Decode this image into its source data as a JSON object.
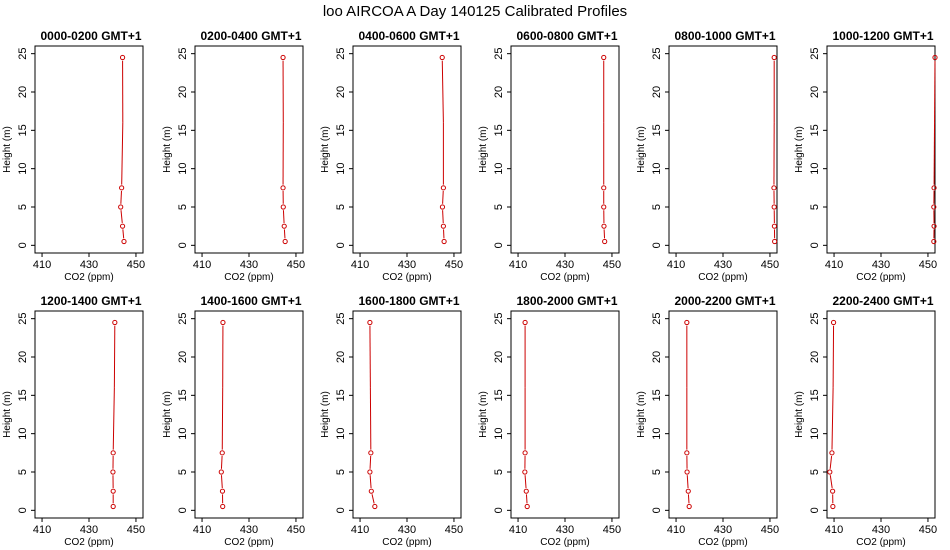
{
  "figure": {
    "title": "loo AIRCOA A  Day 140125  Calibrated Profiles"
  },
  "colors": {
    "series": "#cc0000",
    "axis": "#000000",
    "background": "#ffffff"
  },
  "chart_data": [
    {
      "type": "line",
      "title": "0000-0200 GMT+1",
      "xlabel": "CO2 (ppm)",
      "ylabel": "Height (m)",
      "xlim": [
        407,
        453
      ],
      "ylim": [
        -1,
        26
      ],
      "xticks": [
        410,
        430,
        450
      ],
      "yticks": [
        0,
        5,
        10,
        15,
        20,
        25
      ],
      "grid": false,
      "series": [
        {
          "x": [
            444.9,
            444.3,
            443.5,
            443.9,
            444.4,
            444.3
          ],
          "y": [
            0.5,
            2.5,
            5,
            7.5,
            16,
            24.5
          ],
          "markers": [
            true,
            true,
            true,
            true,
            false,
            true
          ]
        }
      ]
    },
    {
      "type": "line",
      "title": "0200-0400 GMT+1",
      "xlabel": "CO2 (ppm)",
      "ylabel": "Height (m)",
      "xlim": [
        407,
        453
      ],
      "ylim": [
        -1,
        26
      ],
      "xticks": [
        410,
        430,
        450
      ],
      "yticks": [
        0,
        5,
        10,
        15,
        20,
        25
      ],
      "grid": false,
      "series": [
        {
          "x": [
            445.4,
            445.0,
            444.6,
            444.5,
            444.6,
            444.5
          ],
          "y": [
            0.5,
            2.5,
            5,
            7.5,
            16,
            24.5
          ],
          "markers": [
            true,
            true,
            true,
            true,
            false,
            true
          ]
        }
      ]
    },
    {
      "type": "line",
      "title": "0400-0600 GMT+1",
      "xlabel": "CO2 (ppm)",
      "ylabel": "Height (m)",
      "xlim": [
        407,
        453
      ],
      "ylim": [
        -1,
        26
      ],
      "xticks": [
        410,
        430,
        450
      ],
      "yticks": [
        0,
        5,
        10,
        15,
        20,
        25
      ],
      "grid": false,
      "series": [
        {
          "x": [
            445.8,
            445.5,
            445.1,
            445.5,
            445.5,
            445.0
          ],
          "y": [
            0.5,
            2.5,
            5,
            7.5,
            16,
            24.5
          ],
          "markers": [
            true,
            true,
            true,
            true,
            false,
            true
          ]
        }
      ]
    },
    {
      "type": "line",
      "title": "0600-0800 GMT+1",
      "xlabel": "CO2 (ppm)",
      "ylabel": "Height (m)",
      "xlim": [
        407,
        453
      ],
      "ylim": [
        -1,
        26
      ],
      "xticks": [
        410,
        430,
        450
      ],
      "yticks": [
        0,
        5,
        10,
        15,
        20,
        25
      ],
      "grid": false,
      "series": [
        {
          "x": [
            446.9,
            446.6,
            446.5,
            446.5,
            446.5,
            446.5
          ],
          "y": [
            0.5,
            2.5,
            5,
            7.5,
            16,
            24.5
          ],
          "markers": [
            true,
            true,
            true,
            true,
            false,
            true
          ]
        }
      ]
    },
    {
      "type": "line",
      "title": "0800-1000 GMT+1",
      "xlabel": "CO2 (ppm)",
      "ylabel": "Height (m)",
      "xlim": [
        407,
        453
      ],
      "ylim": [
        -1,
        26
      ],
      "xticks": [
        410,
        430,
        450
      ],
      "yticks": [
        0,
        5,
        10,
        15,
        20,
        25
      ],
      "grid": false,
      "series": [
        {
          "x": [
            452.0,
            451.9,
            451.8,
            451.7,
            451.8,
            451.8
          ],
          "y": [
            0.5,
            2.5,
            5,
            7.5,
            16,
            24.5
          ],
          "markers": [
            true,
            true,
            true,
            true,
            false,
            true
          ]
        }
      ]
    },
    {
      "type": "line",
      "title": "1000-1200 GMT+1",
      "xlabel": "CO2 (ppm)",
      "ylabel": "Height (m)",
      "xlim": [
        407,
        453
      ],
      "ylim": [
        -1,
        26
      ],
      "xticks": [
        410,
        430,
        450
      ],
      "yticks": [
        0,
        5,
        10,
        15,
        20,
        25
      ],
      "grid": false,
      "series": [
        {
          "x": [
            452.5,
            452.6,
            452.5,
            452.6,
            452.8,
            453.0
          ],
          "y": [
            0.5,
            2.5,
            5,
            7.5,
            16,
            24.5
          ],
          "markers": [
            true,
            true,
            true,
            true,
            false,
            true
          ]
        }
      ]
    },
    {
      "type": "line",
      "title": "1200-1400 GMT+1",
      "xlabel": "CO2 (ppm)",
      "ylabel": "Height (m)",
      "xlim": [
        407,
        453
      ],
      "ylim": [
        -1,
        26
      ],
      "xticks": [
        410,
        430,
        450
      ],
      "yticks": [
        0,
        5,
        10,
        15,
        20,
        25
      ],
      "grid": false,
      "series": [
        {
          "x": [
            440.3,
            440.3,
            440.2,
            440.3,
            440.8,
            441.0
          ],
          "y": [
            0.5,
            2.5,
            5,
            7.5,
            16,
            24.5
          ],
          "markers": [
            true,
            true,
            true,
            true,
            false,
            true
          ]
        }
      ]
    },
    {
      "type": "line",
      "title": "1400-1600 GMT+1",
      "xlabel": "CO2 (ppm)",
      "ylabel": "Height (m)",
      "xlim": [
        407,
        453
      ],
      "ylim": [
        -1,
        26
      ],
      "xticks": [
        410,
        430,
        450
      ],
      "yticks": [
        0,
        5,
        10,
        15,
        20,
        25
      ],
      "grid": false,
      "series": [
        {
          "x": [
            418.8,
            418.7,
            418.2,
            418.6,
            418.8,
            418.9
          ],
          "y": [
            0.5,
            2.5,
            5,
            7.5,
            16,
            24.5
          ],
          "markers": [
            true,
            true,
            true,
            true,
            false,
            true
          ]
        }
      ]
    },
    {
      "type": "line",
      "title": "1600-1800 GMT+1",
      "xlabel": "CO2 (ppm)",
      "ylabel": "Height (m)",
      "xlim": [
        407,
        453
      ],
      "ylim": [
        -1,
        26
      ],
      "xticks": [
        410,
        430,
        450
      ],
      "yticks": [
        0,
        5,
        10,
        15,
        20,
        25
      ],
      "grid": false,
      "series": [
        {
          "x": [
            416.3,
            414.8,
            414.2,
            414.6,
            414.4,
            414.2
          ],
          "y": [
            0.5,
            2.5,
            5,
            7.5,
            16,
            24.5
          ],
          "markers": [
            true,
            true,
            true,
            true,
            false,
            true
          ]
        }
      ]
    },
    {
      "type": "line",
      "title": "1800-2000 GMT+1",
      "xlabel": "CO2 (ppm)",
      "ylabel": "Height (m)",
      "xlim": [
        407,
        453
      ],
      "ylim": [
        -1,
        26
      ],
      "xticks": [
        410,
        430,
        450
      ],
      "yticks": [
        0,
        5,
        10,
        15,
        20,
        25
      ],
      "grid": false,
      "series": [
        {
          "x": [
            413.9,
            413.5,
            412.9,
            413.0,
            413.0,
            413.0
          ],
          "y": [
            0.5,
            2.5,
            5,
            7.5,
            16,
            24.5
          ],
          "markers": [
            true,
            true,
            true,
            true,
            false,
            true
          ]
        }
      ]
    },
    {
      "type": "line",
      "title": "2000-2200 GMT+1",
      "xlabel": "CO2 (ppm)",
      "ylabel": "Height (m)",
      "xlim": [
        407,
        453
      ],
      "ylim": [
        -1,
        26
      ],
      "xticks": [
        410,
        430,
        450
      ],
      "yticks": [
        0,
        5,
        10,
        15,
        20,
        25
      ],
      "grid": false,
      "series": [
        {
          "x": [
            415.6,
            415.2,
            414.7,
            414.6,
            414.6,
            414.6
          ],
          "y": [
            0.5,
            2.5,
            5,
            7.5,
            16,
            24.5
          ],
          "markers": [
            true,
            true,
            true,
            true,
            false,
            true
          ]
        }
      ]
    },
    {
      "type": "line",
      "title": "2200-2400 GMT+1",
      "xlabel": "CO2 (ppm)",
      "ylabel": "Height (m)",
      "xlim": [
        407,
        453
      ],
      "ylim": [
        -1,
        26
      ],
      "xticks": [
        410,
        430,
        450
      ],
      "yticks": [
        0,
        5,
        10,
        15,
        20,
        25
      ],
      "grid": false,
      "series": [
        {
          "x": [
            409.5,
            409.4,
            408.2,
            409.1,
            409.6,
            409.8
          ],
          "y": [
            0.5,
            2.5,
            5,
            7.5,
            16,
            24.5
          ],
          "markers": [
            true,
            true,
            true,
            true,
            false,
            true
          ]
        }
      ]
    }
  ]
}
